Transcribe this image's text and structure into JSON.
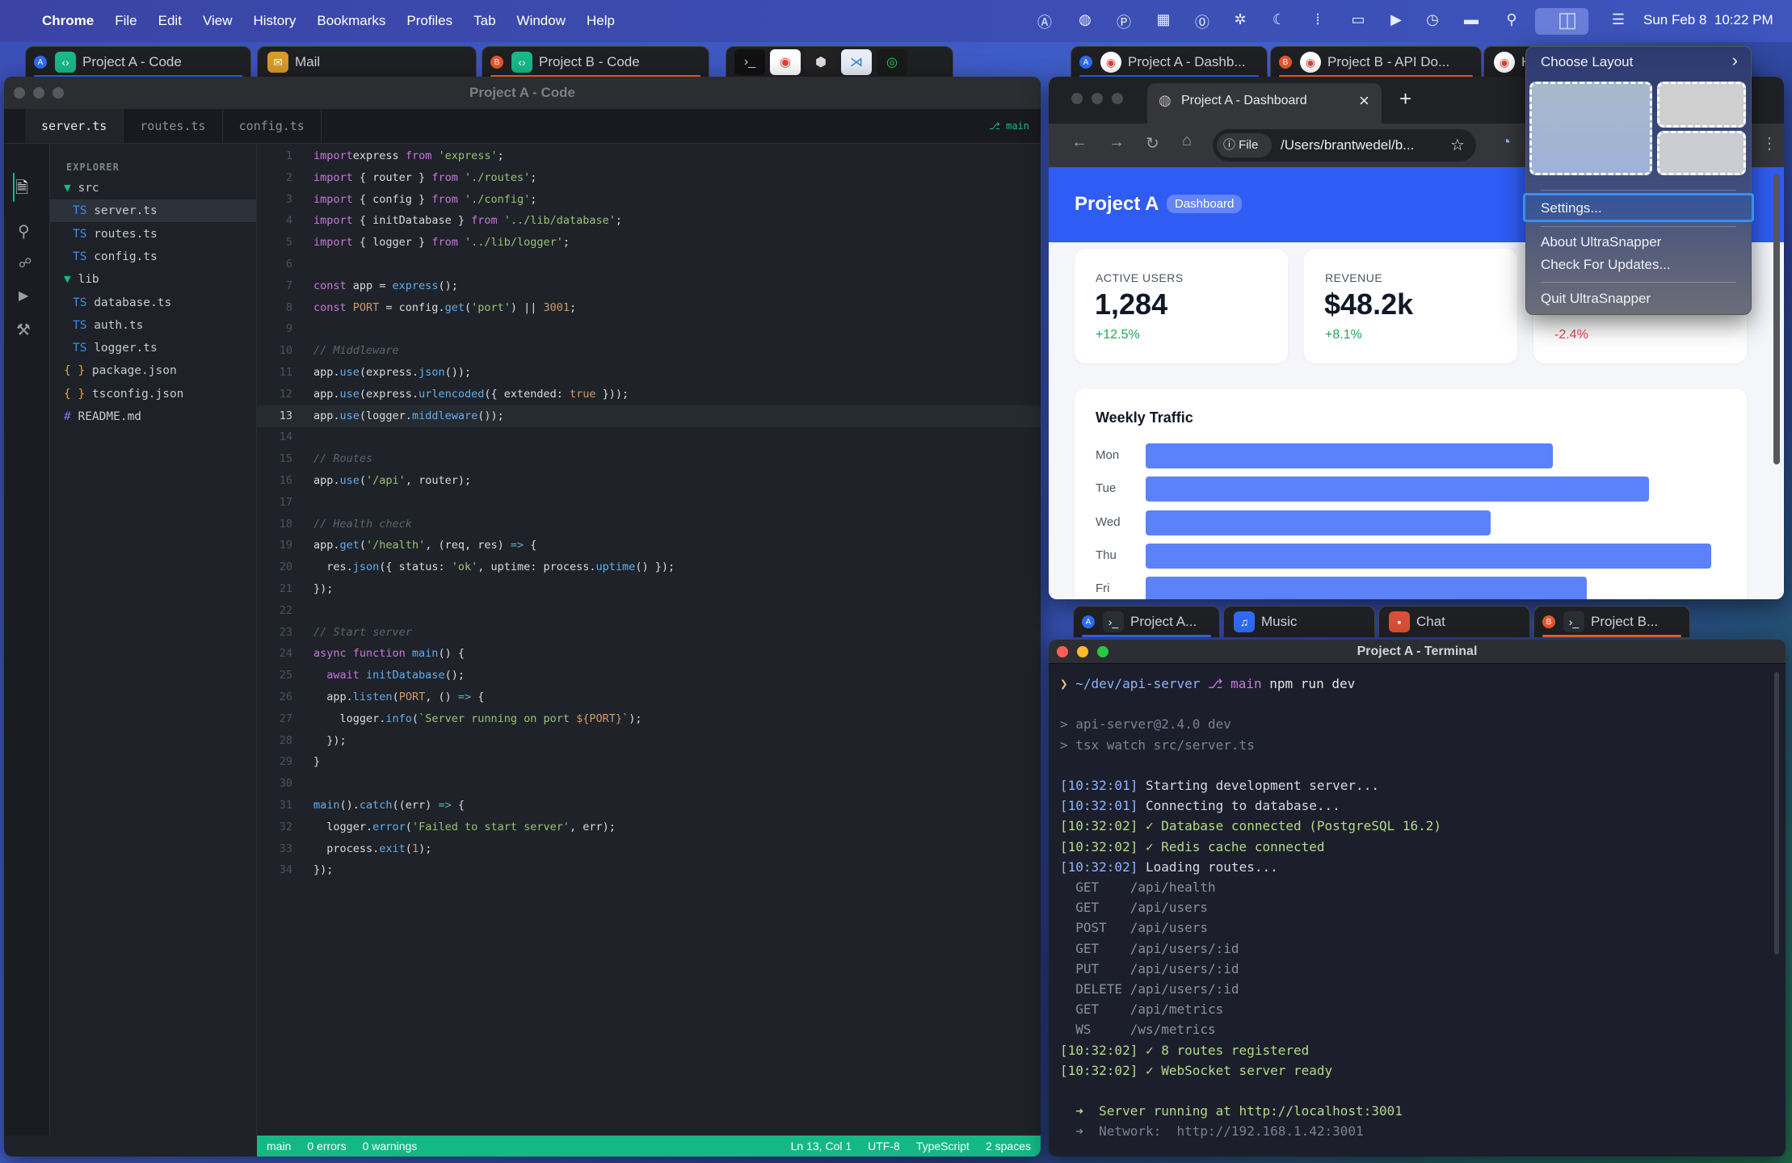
{
  "menubar": {
    "app_name": "Chrome",
    "items": [
      "File",
      "Edit",
      "View",
      "History",
      "Bookmarks",
      "Profiles",
      "Tab",
      "Window",
      "Help"
    ],
    "status_icons": [
      "text-input-icon",
      "globe-icon",
      "p-badge-icon",
      "grid-icon",
      "password-icon",
      "bug-icon",
      "moon-icon",
      "waveform-icon",
      "laptop-icon",
      "play-icon",
      "clock-icon",
      "battery-icon",
      "search-icon",
      "layout-icon",
      "control-center-icon"
    ],
    "datetime": "Sun Feb 8  10:22 PM"
  },
  "top_tabs_left": [
    {
      "badge": "A",
      "badge_color": "#2f6bf0",
      "app_icon": "code-icon",
      "icon_color": "#19b889",
      "label": "Project A - Code",
      "underline": "#2f6bf0"
    },
    {
      "badge": "",
      "app_icon": "mail-icon",
      "icon_color": "#d89a2a",
      "label": "Mail"
    },
    {
      "badge": "B",
      "badge_color": "#e4572e",
      "app_icon": "code-icon",
      "icon_color": "#19b889",
      "label": "Project B - Code",
      "underline": "#f06a35"
    }
  ],
  "dock_icons": [
    "terminal-icon",
    "chrome-icon",
    "cube-icon",
    "vscode-icon",
    "spotify-icon"
  ],
  "top_tabs_right": [
    {
      "badge": "A",
      "badge_color": "#2f6bf0",
      "label": "Project A - Dashb...",
      "underline": "#2f6bf0"
    },
    {
      "badge": "B",
      "badge_color": "#e4572e",
      "label": "Project B - API Do...",
      "underline": "#f06a35"
    },
    {
      "badge": "",
      "label": "H"
    }
  ],
  "editor": {
    "window_title": "Project A - Code",
    "tabs": [
      "server.ts",
      "routes.ts",
      "config.ts"
    ],
    "branch": "⎇ main",
    "explorer_title": "EXPLORER",
    "tree": [
      {
        "prefix": "▼ ",
        "name": "src",
        "indent": 1,
        "kind": "folder"
      },
      {
        "prefix": "TS ",
        "name": "server.ts",
        "indent": 2,
        "kind": "ts",
        "selected": true
      },
      {
        "prefix": "TS ",
        "name": "routes.ts",
        "indent": 2,
        "kind": "ts"
      },
      {
        "prefix": "TS ",
        "name": "config.ts",
        "indent": 2,
        "kind": "ts"
      },
      {
        "prefix": "▼ ",
        "name": "lib",
        "indent": 1,
        "kind": "folder"
      },
      {
        "prefix": "TS ",
        "name": "database.ts",
        "indent": 2,
        "kind": "ts"
      },
      {
        "prefix": "TS ",
        "name": "auth.ts",
        "indent": 2,
        "kind": "ts"
      },
      {
        "prefix": "TS ",
        "name": "logger.ts",
        "indent": 2,
        "kind": "ts"
      },
      {
        "prefix": "{ } ",
        "name": "package.json",
        "indent": 1,
        "kind": "json"
      },
      {
        "prefix": "{ } ",
        "name": "tsconfig.json",
        "indent": 1,
        "kind": "json"
      },
      {
        "prefix": "# ",
        "name": "README.md",
        "indent": 1,
        "kind": "md"
      }
    ],
    "current_line": 13,
    "code": [
      [
        [
          "k",
          "import"
        ],
        [
          "",
          "express "
        ],
        [
          "k",
          "from"
        ],
        [
          "s",
          " 'express'"
        ],
        [
          "",
          ";"
        ]
      ],
      [
        [
          "k",
          "import"
        ],
        [
          "",
          " { router } "
        ],
        [
          "k",
          "from"
        ],
        [
          "s",
          " './routes'"
        ],
        [
          "",
          ";"
        ]
      ],
      [
        [
          "k",
          "import"
        ],
        [
          "",
          " { config } "
        ],
        [
          "k",
          "from"
        ],
        [
          "s",
          " './config'"
        ],
        [
          "",
          ";"
        ]
      ],
      [
        [
          "k",
          "import"
        ],
        [
          "",
          " { initDatabase } "
        ],
        [
          "k",
          "from"
        ],
        [
          "s",
          " '../lib/database'"
        ],
        [
          "",
          ";"
        ]
      ],
      [
        [
          "k",
          "import"
        ],
        [
          "",
          " { logger } "
        ],
        [
          "k",
          "from"
        ],
        [
          "s",
          " '../lib/logger'"
        ],
        [
          "",
          ";"
        ]
      ],
      [],
      [
        [
          "k",
          "const"
        ],
        [
          "",
          " app = "
        ],
        [
          "f",
          "express"
        ],
        [
          "",
          "();"
        ]
      ],
      [
        [
          "k",
          "const"
        ],
        [
          "n",
          " PORT"
        ],
        [
          "",
          " = config."
        ],
        [
          "f",
          "get"
        ],
        [
          "",
          "("
        ],
        [
          "s",
          "'port'"
        ],
        [
          "",
          ") || "
        ],
        [
          "n",
          "3001"
        ],
        [
          "",
          ";"
        ]
      ],
      [],
      [
        [
          "c",
          "// Middleware"
        ]
      ],
      [
        [
          "",
          "app."
        ],
        [
          "f",
          "use"
        ],
        [
          "",
          "(express."
        ],
        [
          "f",
          "json"
        ],
        [
          "",
          "());"
        ]
      ],
      [
        [
          "",
          "app."
        ],
        [
          "f",
          "use"
        ],
        [
          "",
          "(express."
        ],
        [
          "f",
          "urlencoded"
        ],
        [
          "",
          "({ extended: "
        ],
        [
          "n",
          "true"
        ],
        [
          "",
          " }));"
        ]
      ],
      [
        [
          "",
          "app."
        ],
        [
          "f",
          "use"
        ],
        [
          "",
          "(logger."
        ],
        [
          "f",
          "middleware"
        ],
        [
          "",
          "());"
        ]
      ],
      [],
      [
        [
          "c",
          "// Routes"
        ]
      ],
      [
        [
          "",
          "app."
        ],
        [
          "f",
          "use"
        ],
        [
          "",
          "("
        ],
        [
          "s",
          "'/api'"
        ],
        [
          "",
          ", router);"
        ]
      ],
      [],
      [
        [
          "c",
          "// Health check"
        ]
      ],
      [
        [
          "",
          "app."
        ],
        [
          "f",
          "get"
        ],
        [
          "",
          "("
        ],
        [
          "s",
          "'/health'"
        ],
        [
          "",
          ", (req, res) "
        ],
        [
          "o",
          "=>"
        ],
        [
          "",
          " {"
        ]
      ],
      [
        [
          "",
          "  res."
        ],
        [
          "f",
          "json"
        ],
        [
          "",
          "({ status: "
        ],
        [
          "s",
          "'ok'"
        ],
        [
          "",
          ", uptime: process."
        ],
        [
          "f",
          "uptime"
        ],
        [
          "",
          "() });"
        ]
      ],
      [
        [
          "",
          "});"
        ]
      ],
      [],
      [
        [
          "c",
          "// Start server"
        ]
      ],
      [
        [
          "k",
          "async function"
        ],
        [
          "f",
          " main"
        ],
        [
          "",
          "() {"
        ]
      ],
      [
        [
          "k",
          "  await"
        ],
        [
          "f",
          " initDatabase"
        ],
        [
          "",
          "();"
        ]
      ],
      [
        [
          "",
          "  app."
        ],
        [
          "f",
          "listen"
        ],
        [
          "",
          "("
        ],
        [
          "n",
          "PORT"
        ],
        [
          "",
          ", () "
        ],
        [
          "o",
          "=>"
        ],
        [
          "",
          " {"
        ]
      ],
      [
        [
          "",
          "    logger."
        ],
        [
          "f",
          "info"
        ],
        [
          "",
          "("
        ],
        [
          "s",
          "`Server running on port "
        ],
        [
          "n",
          "${PORT}"
        ],
        [
          "s",
          "`"
        ],
        [
          "",
          ");"
        ]
      ],
      [
        [
          "",
          "  });"
        ]
      ],
      [
        [
          "",
          "}"
        ]
      ],
      [],
      [
        [
          "f",
          "main"
        ],
        [
          "",
          "()."
        ],
        [
          "f",
          "catch"
        ],
        [
          "",
          "((err) "
        ],
        [
          "o",
          "=>"
        ],
        [
          "",
          " {"
        ]
      ],
      [
        [
          "",
          "  logger."
        ],
        [
          "f",
          "error"
        ],
        [
          "",
          "("
        ],
        [
          "s",
          "'Failed to start server'"
        ],
        [
          "",
          ", err);"
        ]
      ],
      [
        [
          "",
          "  process."
        ],
        [
          "f",
          "exit"
        ],
        [
          "",
          "("
        ],
        [
          "n",
          "1"
        ],
        [
          "",
          ");"
        ]
      ],
      [
        [
          "",
          "});"
        ]
      ]
    ],
    "status_left": [
      "main",
      "0 errors",
      "0 warnings"
    ],
    "status_right": [
      "Ln 13, Col 1",
      "UTF-8",
      "TypeScript",
      "2 spaces"
    ]
  },
  "browser": {
    "tab_title": "Project A - Dashboard",
    "new_tab": "+",
    "close": "×",
    "url_chip": "File",
    "url": "/Users/brantwedel/b...",
    "page": {
      "title": "Project A",
      "badge": "Dashboard",
      "cards": [
        {
          "label": "ACTIVE USERS",
          "value": "1,284",
          "change": "+12.5%",
          "change_color": "#22a55a"
        },
        {
          "label": "REVENUE",
          "value": "$48.2k",
          "change": "+8.1%",
          "change_color": "#22a55a"
        },
        {
          "label": "",
          "value": "",
          "change": "-2.4%",
          "change_color": "#e5484d"
        }
      ],
      "chart_title": "Weekly Traffic"
    }
  },
  "chart_data": {
    "type": "bar",
    "orientation": "horizontal",
    "title": "Weekly Traffic",
    "categories": [
      "Mon",
      "Tue",
      "Wed",
      "Thu",
      "Fri"
    ],
    "values": [
      72,
      89,
      61,
      100,
      78
    ],
    "xlim": [
      0,
      100
    ],
    "bar_color": "#5b82fb",
    "grid": false
  },
  "bottom_tabs": [
    {
      "badge": "A",
      "badge_color": "#2f6bf0",
      "app_icon": "terminal-icon",
      "icon_color": "#2a2e36",
      "label": "Project A...",
      "underline": "#2f6bf0"
    },
    {
      "badge": "",
      "app_icon": "music-icon",
      "icon_color": "#2f6bf0",
      "label": "Music"
    },
    {
      "badge": "",
      "app_icon": "chat-icon",
      "icon_color": "#d9503a",
      "label": "Chat"
    },
    {
      "badge": "B",
      "badge_color": "#e4572e",
      "app_icon": "terminal-icon",
      "icon_color": "#2a2e36",
      "label": "Project B...",
      "underline": "#f06a35"
    }
  ],
  "terminal": {
    "title": "Project A - Terminal",
    "lines": [
      [
        [
          "#e5c07b",
          "❯ "
        ],
        [
          "#8fb4ff",
          "~/dev/api-server "
        ],
        [
          "#c678dd",
          "⎇ main "
        ],
        [
          "#e6e6e6",
          "npm run dev"
        ]
      ],
      [],
      [
        [
          "#7b8191",
          "> api-server@2.4.0 dev"
        ]
      ],
      [
        [
          "#7b8191",
          "> tsx watch src/server.ts"
        ]
      ],
      [],
      [
        [
          "#8fb4ff",
          "[10:32:01] "
        ],
        [
          "#d6d9e0",
          "Starting development server..."
        ]
      ],
      [
        [
          "#8fb4ff",
          "[10:32:01] "
        ],
        [
          "#d6d9e0",
          "Connecting to database..."
        ]
      ],
      [
        [
          "#b5d98a",
          "[10:32:02] ✓ Database connected (PostgreSQL 16.2)"
        ]
      ],
      [
        [
          "#b5d98a",
          "[10:32:02] ✓ Redis cache connected"
        ]
      ],
      [
        [
          "#8fb4ff",
          "[10:32:02] "
        ],
        [
          "#d6d9e0",
          "Loading routes..."
        ]
      ],
      [
        [
          "#8a90a0",
          "  GET    /api/health"
        ]
      ],
      [
        [
          "#8a90a0",
          "  GET    /api/users"
        ]
      ],
      [
        [
          "#8a90a0",
          "  POST   /api/users"
        ]
      ],
      [
        [
          "#8a90a0",
          "  GET    /api/users/:id"
        ]
      ],
      [
        [
          "#8a90a0",
          "  PUT    /api/users/:id"
        ]
      ],
      [
        [
          "#8a90a0",
          "  DELETE /api/users/:id"
        ]
      ],
      [
        [
          "#8a90a0",
          "  GET    /api/metrics"
        ]
      ],
      [
        [
          "#8a90a0",
          "  WS     /ws/metrics"
        ]
      ],
      [
        [
          "#b5d98a",
          "[10:32:02] ✓ 8 routes registered"
        ]
      ],
      [
        [
          "#b5d98a",
          "[10:32:02] ✓ WebSocket server ready"
        ]
      ],
      [],
      [
        [
          "#b5d98a",
          "  ➜  Server running at http://localhost:3001"
        ]
      ],
      [
        [
          "#7b8191",
          "  ➜  Network:  http://192.168.1.42:3001"
        ]
      ]
    ]
  },
  "layout_menu": {
    "choose_layout": "Choose Layout",
    "chevron": "›",
    "settings": "Settings...",
    "about": "About UltraSnapper",
    "updates": "Check For Updates...",
    "quit": "Quit UltraSnapper"
  }
}
